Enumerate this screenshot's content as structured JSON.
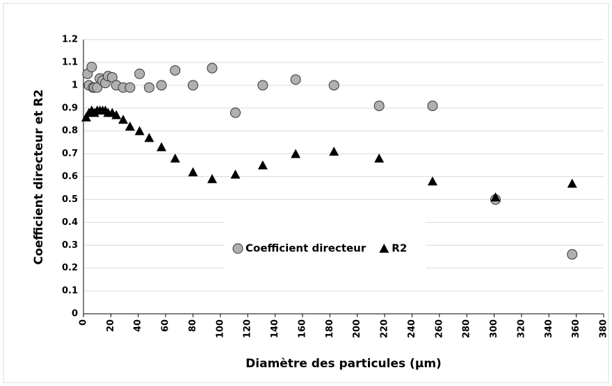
{
  "chart_data": {
    "type": "scatter",
    "xlabel": "Diamètre des particules (µm)",
    "ylabel": "Coefficient directeur et R2",
    "xlim": [
      0,
      380
    ],
    "xticks": [
      0,
      20,
      40,
      60,
      80,
      100,
      120,
      140,
      160,
      180,
      200,
      220,
      240,
      260,
      280,
      300,
      320,
      340,
      360,
      380
    ],
    "ylim": [
      0,
      1.2
    ],
    "yticks": [
      0,
      0.1,
      0.2,
      0.3,
      0.4,
      0.5,
      0.6,
      0.7,
      0.8,
      0.9,
      1,
      1.1,
      1.2
    ],
    "grid": true,
    "legend": "center",
    "series": [
      {
        "name": "Coefficient directeur",
        "color": "#b0b0b0",
        "marker": "circle",
        "x": [
          3,
          4,
          6,
          7,
          8,
          10,
          12,
          14,
          16,
          18,
          21,
          24,
          29,
          34,
          41,
          48,
          57,
          67,
          80,
          94,
          111,
          131,
          155,
          183,
          216,
          255,
          301,
          357
        ],
        "values": [
          1.05,
          1.0,
          1.08,
          0.99,
          0.99,
          0.99,
          1.03,
          1.02,
          1.01,
          1.04,
          1.035,
          1.0,
          0.99,
          0.99,
          1.05,
          0.99,
          1.0,
          1.065,
          1.0,
          1.075,
          0.88,
          1.0,
          1.025,
          1.0,
          0.91,
          0.91,
          0.5,
          0.26
        ]
      },
      {
        "name": "R2",
        "color": "#000000",
        "marker": "triangle",
        "x": [
          2,
          4,
          6,
          8,
          10,
          12,
          14,
          16,
          18,
          21,
          24,
          29,
          34,
          41,
          48,
          57,
          67,
          80,
          94,
          111,
          131,
          155,
          183,
          216,
          255,
          301,
          357
        ],
        "values": [
          0.86,
          0.88,
          0.89,
          0.88,
          0.89,
          0.89,
          0.89,
          0.89,
          0.88,
          0.88,
          0.87,
          0.85,
          0.82,
          0.8,
          0.77,
          0.73,
          0.68,
          0.62,
          0.59,
          0.61,
          0.65,
          0.7,
          0.71,
          0.68,
          0.58,
          0.51,
          0.57
        ]
      }
    ]
  }
}
